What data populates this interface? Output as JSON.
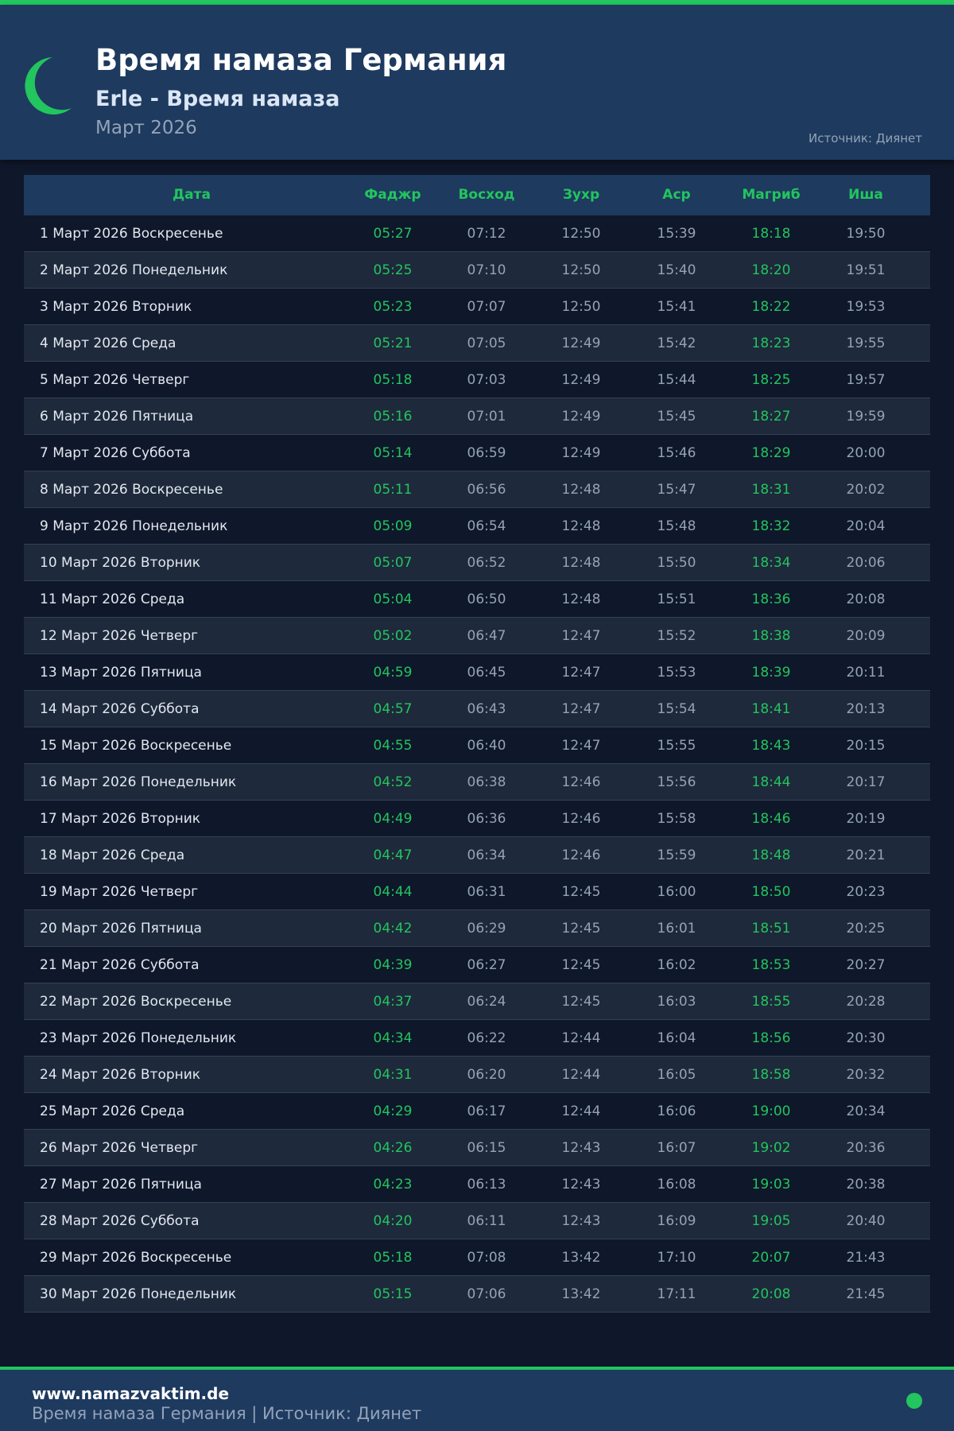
{
  "header": {
    "title": "Время намаза Германия",
    "subtitle": "Erle - Время намаза",
    "month": "Март 2026",
    "source": "Источник: Диянет",
    "logo_icon": "crescent-moon-icon"
  },
  "colors": {
    "accent": "#22c55e",
    "header_bg": "#1e3a5f",
    "page_bg": "#0f172a",
    "row_alt": "#1e293b"
  },
  "table": {
    "columns": [
      "Дата",
      "Фаджр",
      "Восход",
      "Зухр",
      "Аср",
      "Магриб",
      "Иша"
    ],
    "rows": [
      [
        "1 Март 2026 Воскресенье",
        "05:27",
        "07:12",
        "12:50",
        "15:39",
        "18:18",
        "19:50"
      ],
      [
        "2 Март 2026 Понедельник",
        "05:25",
        "07:10",
        "12:50",
        "15:40",
        "18:20",
        "19:51"
      ],
      [
        "3 Март 2026 Вторник",
        "05:23",
        "07:07",
        "12:50",
        "15:41",
        "18:22",
        "19:53"
      ],
      [
        "4 Март 2026 Среда",
        "05:21",
        "07:05",
        "12:49",
        "15:42",
        "18:23",
        "19:55"
      ],
      [
        "5 Март 2026 Четверг",
        "05:18",
        "07:03",
        "12:49",
        "15:44",
        "18:25",
        "19:57"
      ],
      [
        "6 Март 2026 Пятница",
        "05:16",
        "07:01",
        "12:49",
        "15:45",
        "18:27",
        "19:59"
      ],
      [
        "7 Март 2026 Суббота",
        "05:14",
        "06:59",
        "12:49",
        "15:46",
        "18:29",
        "20:00"
      ],
      [
        "8 Март 2026 Воскресенье",
        "05:11",
        "06:56",
        "12:48",
        "15:47",
        "18:31",
        "20:02"
      ],
      [
        "9 Март 2026 Понедельник",
        "05:09",
        "06:54",
        "12:48",
        "15:48",
        "18:32",
        "20:04"
      ],
      [
        "10 Март 2026 Вторник",
        "05:07",
        "06:52",
        "12:48",
        "15:50",
        "18:34",
        "20:06"
      ],
      [
        "11 Март 2026 Среда",
        "05:04",
        "06:50",
        "12:48",
        "15:51",
        "18:36",
        "20:08"
      ],
      [
        "12 Март 2026 Четверг",
        "05:02",
        "06:47",
        "12:47",
        "15:52",
        "18:38",
        "20:09"
      ],
      [
        "13 Март 2026 Пятница",
        "04:59",
        "06:45",
        "12:47",
        "15:53",
        "18:39",
        "20:11"
      ],
      [
        "14 Март 2026 Суббота",
        "04:57",
        "06:43",
        "12:47",
        "15:54",
        "18:41",
        "20:13"
      ],
      [
        "15 Март 2026 Воскресенье",
        "04:55",
        "06:40",
        "12:47",
        "15:55",
        "18:43",
        "20:15"
      ],
      [
        "16 Март 2026 Понедельник",
        "04:52",
        "06:38",
        "12:46",
        "15:56",
        "18:44",
        "20:17"
      ],
      [
        "17 Март 2026 Вторник",
        "04:49",
        "06:36",
        "12:46",
        "15:58",
        "18:46",
        "20:19"
      ],
      [
        "18 Март 2026 Среда",
        "04:47",
        "06:34",
        "12:46",
        "15:59",
        "18:48",
        "20:21"
      ],
      [
        "19 Март 2026 Четверг",
        "04:44",
        "06:31",
        "12:45",
        "16:00",
        "18:50",
        "20:23"
      ],
      [
        "20 Март 2026 Пятница",
        "04:42",
        "06:29",
        "12:45",
        "16:01",
        "18:51",
        "20:25"
      ],
      [
        "21 Март 2026 Суббота",
        "04:39",
        "06:27",
        "12:45",
        "16:02",
        "18:53",
        "20:27"
      ],
      [
        "22 Март 2026 Воскресенье",
        "04:37",
        "06:24",
        "12:45",
        "16:03",
        "18:55",
        "20:28"
      ],
      [
        "23 Март 2026 Понедельник",
        "04:34",
        "06:22",
        "12:44",
        "16:04",
        "18:56",
        "20:30"
      ],
      [
        "24 Март 2026 Вторник",
        "04:31",
        "06:20",
        "12:44",
        "16:05",
        "18:58",
        "20:32"
      ],
      [
        "25 Март 2026 Среда",
        "04:29",
        "06:17",
        "12:44",
        "16:06",
        "19:00",
        "20:34"
      ],
      [
        "26 Март 2026 Четверг",
        "04:26",
        "06:15",
        "12:43",
        "16:07",
        "19:02",
        "20:36"
      ],
      [
        "27 Март 2026 Пятница",
        "04:23",
        "06:13",
        "12:43",
        "16:08",
        "19:03",
        "20:38"
      ],
      [
        "28 Март 2026 Суббота",
        "04:20",
        "06:11",
        "12:43",
        "16:09",
        "19:05",
        "20:40"
      ],
      [
        "29 Март 2026 Воскресенье",
        "05:18",
        "07:08",
        "13:42",
        "17:10",
        "20:07",
        "21:43"
      ],
      [
        "30 Март 2026 Понедельник",
        "05:15",
        "07:06",
        "13:42",
        "17:11",
        "20:08",
        "21:45"
      ]
    ]
  },
  "footer": {
    "site": "www.namazvaktim.de",
    "subtitle": "Время намаза Германия | Источник: Диянет",
    "status_icon": "green-dot-icon"
  }
}
